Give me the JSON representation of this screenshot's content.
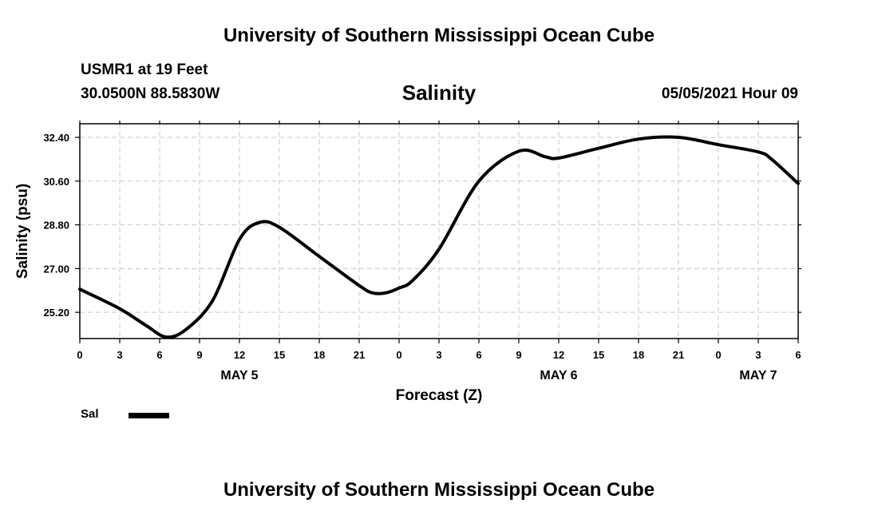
{
  "header": {
    "title": "University of Southern Mississippi Ocean Cube",
    "station": "USMR1 at 19 Feet",
    "coordinates": "30.0500N  88.5830W",
    "variable": "Salinity",
    "datetime": "05/05/2021 Hour 09"
  },
  "footer": {
    "title": "University of Southern Mississippi Ocean Cube"
  },
  "legend": {
    "label": "Sal"
  },
  "chart_data": {
    "type": "line",
    "title": "Salinity",
    "xlabel": "Forecast (Z)",
    "ylabel": "Salinity (psu)",
    "xlim": [
      0,
      54
    ],
    "ylim": [
      24.12,
      32.96
    ],
    "x_unit": "hours since May 5 00Z",
    "x_ticks": [
      0,
      3,
      6,
      9,
      12,
      15,
      18,
      21,
      24,
      27,
      30,
      33,
      36,
      39,
      42,
      45,
      48,
      51,
      54
    ],
    "x_tick_labels": [
      "0",
      "3",
      "6",
      "9",
      "12",
      "15",
      "18",
      "21",
      "0",
      "3",
      "6",
      "9",
      "12",
      "15",
      "18",
      "21",
      "0",
      "3",
      "6"
    ],
    "y_ticks": [
      25.2,
      27.0,
      28.8,
      30.6,
      32.4
    ],
    "y_tick_labels": [
      "25.20",
      "27.00",
      "28.80",
      "30.60",
      "32.40"
    ],
    "date_labels": [
      {
        "x": 12,
        "label": "MAY 5"
      },
      {
        "x": 36,
        "label": "MAY 6"
      },
      {
        "x": 51,
        "label": "MAY 7"
      }
    ],
    "grid": true,
    "series": [
      {
        "name": "Sal",
        "color": "#000000",
        "x": [
          0,
          3,
          5,
          6.5,
          8,
          10,
          12,
          13.5,
          15,
          18,
          21,
          22,
          23,
          24,
          25,
          27,
          30,
          33,
          35,
          36,
          39,
          42,
          45,
          48,
          51,
          52,
          54
        ],
        "y": [
          26.15,
          25.35,
          24.65,
          24.18,
          24.5,
          25.7,
          28.2,
          28.9,
          28.7,
          27.5,
          26.3,
          26.0,
          26.0,
          26.2,
          26.5,
          27.8,
          30.6,
          31.83,
          31.6,
          31.55,
          31.95,
          32.33,
          32.4,
          32.1,
          31.8,
          31.5,
          30.5
        ]
      }
    ]
  }
}
